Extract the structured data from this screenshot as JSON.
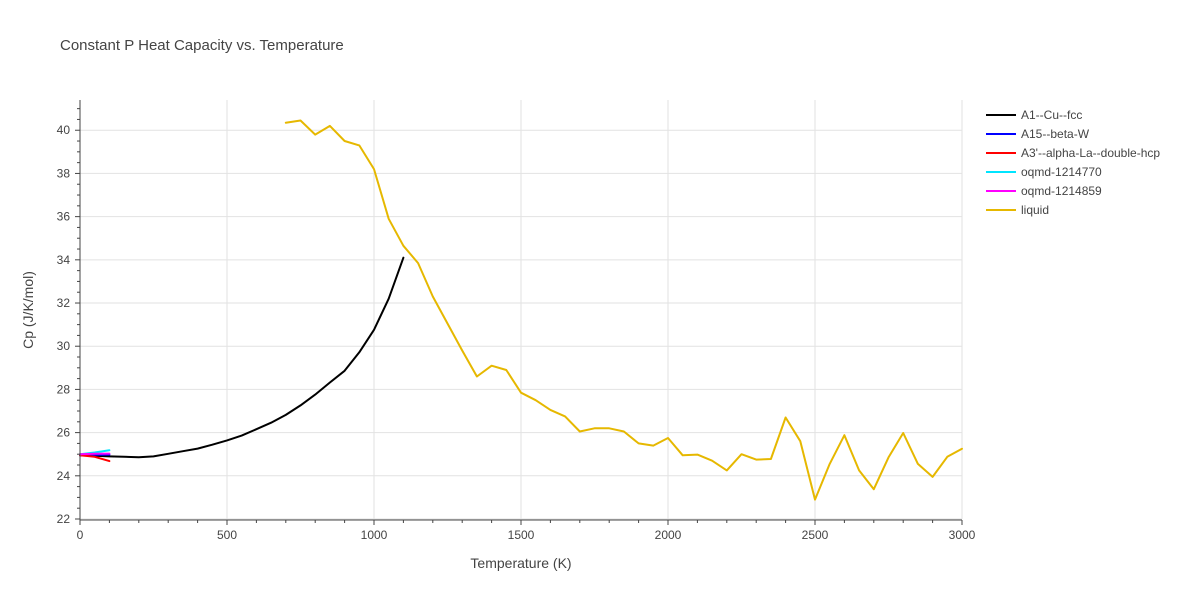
{
  "chart_data": {
    "type": "line",
    "title": "Constant P Heat Capacity vs. Temperature",
    "xlabel": "Temperature (K)",
    "ylabel": "Cp (J/K/mol)",
    "xlim": [
      0,
      3000
    ],
    "ylim": [
      22,
      41.4
    ],
    "x_ticks": [
      0,
      500,
      1000,
      1500,
      2000,
      2500,
      3000
    ],
    "x_tick_labels": [
      "0",
      "500",
      "1000",
      "1500",
      "2000",
      "2500",
      "3000"
    ],
    "y_ticks": [
      22,
      24,
      26,
      28,
      30,
      32,
      34,
      36,
      38,
      40
    ],
    "y_tick_labels": [
      "22",
      "24",
      "26",
      "28",
      "30",
      "32",
      "34",
      "36",
      "38",
      "40"
    ],
    "grid": true,
    "legend_position": "top-right",
    "series": [
      {
        "name": "A1--Cu--fcc",
        "color": "#000000",
        "x": [
          0,
          50,
          100,
          150,
          200,
          250,
          300,
          350,
          400,
          450,
          500,
          550,
          600,
          650,
          700,
          750,
          800,
          850,
          900,
          950,
          1000,
          1050,
          1100
        ],
        "y": [
          24.95,
          24.93,
          24.9,
          24.88,
          24.86,
          24.9,
          25.02,
          25.14,
          25.26,
          25.44,
          25.64,
          25.86,
          26.16,
          26.46,
          26.82,
          27.26,
          27.76,
          28.32,
          28.86,
          29.72,
          30.76,
          32.2,
          34.1
        ]
      },
      {
        "name": "A15--beta-W",
        "color": "#0000ff",
        "x": [
          0,
          50,
          100
        ],
        "y": [
          24.95,
          24.97,
          24.98
        ]
      },
      {
        "name": "A3'--alpha-La--double-hcp",
        "color": "#ff0000",
        "x": [
          0,
          50,
          100
        ],
        "y": [
          24.95,
          24.88,
          24.68
        ]
      },
      {
        "name": "oqmd-1214770",
        "color": "#00e5ff",
        "x": [
          0,
          50,
          100
        ],
        "y": [
          25.0,
          25.08,
          25.18
        ]
      },
      {
        "name": "oqmd-1214859",
        "color": "#ff00ff",
        "x": [
          0,
          50,
          100
        ],
        "y": [
          25.0,
          25.02,
          25.03
        ]
      },
      {
        "name": "liquid",
        "color": "#e6b800",
        "x": [
          700,
          750,
          800,
          850,
          900,
          950,
          1000,
          1050,
          1100,
          1150,
          1200,
          1250,
          1300,
          1350,
          1400,
          1450,
          1500,
          1550,
          1600,
          1650,
          1700,
          1750,
          1800,
          1850,
          1900,
          1950,
          2000,
          2050,
          2100,
          2150,
          2200,
          2250,
          2300,
          2350,
          2400,
          2450,
          2500,
          2550,
          2600,
          2650,
          2700,
          2750,
          2800,
          2850,
          2900,
          2950,
          3000
        ],
        "y": [
          40.35,
          40.45,
          39.8,
          40.2,
          39.5,
          39.3,
          38.2,
          35.9,
          34.65,
          33.85,
          32.3,
          31.05,
          29.8,
          28.6,
          29.1,
          28.9,
          27.85,
          27.5,
          27.05,
          26.75,
          26.05,
          26.2,
          26.2,
          26.05,
          25.5,
          25.4,
          25.75,
          24.95,
          24.98,
          24.7,
          24.25,
          25.0,
          24.75,
          24.78,
          26.7,
          25.6,
          22.9,
          24.55,
          25.88,
          24.25,
          23.38,
          24.85,
          25.98,
          24.55,
          23.95,
          24.88,
          25.25
        ]
      }
    ]
  }
}
